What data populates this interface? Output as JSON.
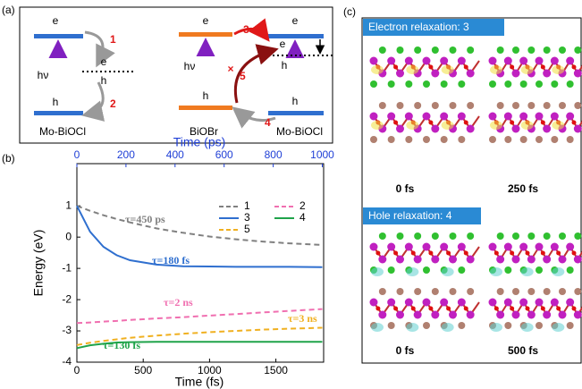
{
  "panel_a": {
    "label": "(a)",
    "left": {
      "e": "e",
      "h": "h",
      "hv": "hν",
      "mid_e": "e",
      "mid_h": "h",
      "step1": "1",
      "step2": "2",
      "name": "Mo-BiOCl"
    },
    "right": {
      "e_left": "e",
      "h_left": "h",
      "hv": "hν",
      "e_right": "e",
      "h_right": "h",
      "mid_e": "e",
      "mid_h": "h",
      "step3": "3",
      "step4": "4",
      "step5": "5",
      "name_left": "BiOBr",
      "name_right": "Mo-BiOCl"
    }
  },
  "chart_data": {
    "type": "line",
    "panel_label": "(b)",
    "x_label": "Time (fs)",
    "x2_label": "Time (ps)",
    "y_label": "Energy (eV)",
    "x": [
      0,
      100,
      200,
      300,
      400,
      600,
      800,
      1000,
      1200,
      1400,
      1600,
      1850
    ],
    "xlim": [
      0,
      1860
    ],
    "xticks": [
      0,
      500,
      1000,
      1500
    ],
    "x2lim": [
      0,
      1000
    ],
    "x2ticks": [
      0,
      200,
      400,
      600,
      800,
      1000
    ],
    "x2_color": "#1f3fd6",
    "ylim": [
      -4,
      2.35
    ],
    "yticks": [
      1,
      0,
      -1,
      -2,
      -3,
      -4
    ],
    "legend": "upper right",
    "series": [
      {
        "name": "1",
        "color": "#808080",
        "dashed": true,
        "annotation": "τ=450 ps",
        "values": [
          1.0,
          0.84,
          0.7,
          0.58,
          0.47,
          0.28,
          0.14,
          0.02,
          -0.07,
          -0.14,
          -0.2,
          -0.25
        ]
      },
      {
        "name": "2",
        "color": "#f06fb0",
        "dashed": true,
        "annotation": "τ=2 ns",
        "values": [
          -2.75,
          -2.73,
          -2.7,
          -2.68,
          -2.65,
          -2.6,
          -2.56,
          -2.51,
          -2.46,
          -2.41,
          -2.36,
          -2.3
        ]
      },
      {
        "name": "3",
        "color": "#2f6fcf",
        "dashed": false,
        "annotation": "τ=180 fs",
        "values": [
          1.0,
          0.17,
          -0.31,
          -0.58,
          -0.74,
          -0.88,
          -0.93,
          -0.94,
          -0.95,
          -0.95,
          -0.95,
          -0.96
        ]
      },
      {
        "name": "4",
        "color": "#1fa34a",
        "dashed": false,
        "annotation": "τ=130 fs",
        "values": [
          -3.55,
          -3.46,
          -3.41,
          -3.37,
          -3.36,
          -3.35,
          -3.35,
          -3.35,
          -3.35,
          -3.35,
          -3.35,
          -3.35
        ]
      },
      {
        "name": "5",
        "color": "#f0b020",
        "dashed": true,
        "annotation": "τ=3 ns",
        "values": [
          -3.45,
          -3.38,
          -3.32,
          -3.27,
          -3.22,
          -3.15,
          -3.09,
          -3.04,
          -3.0,
          -2.96,
          -2.93,
          -2.9
        ]
      }
    ]
  },
  "panel_c": {
    "label": "(c)",
    "electron_title": "Electron relaxation: 3",
    "electron_times": [
      "0 fs",
      "250 fs"
    ],
    "hole_title": "Hole relaxation: 4",
    "hole_times": [
      "0 fs",
      "500 fs"
    ]
  }
}
